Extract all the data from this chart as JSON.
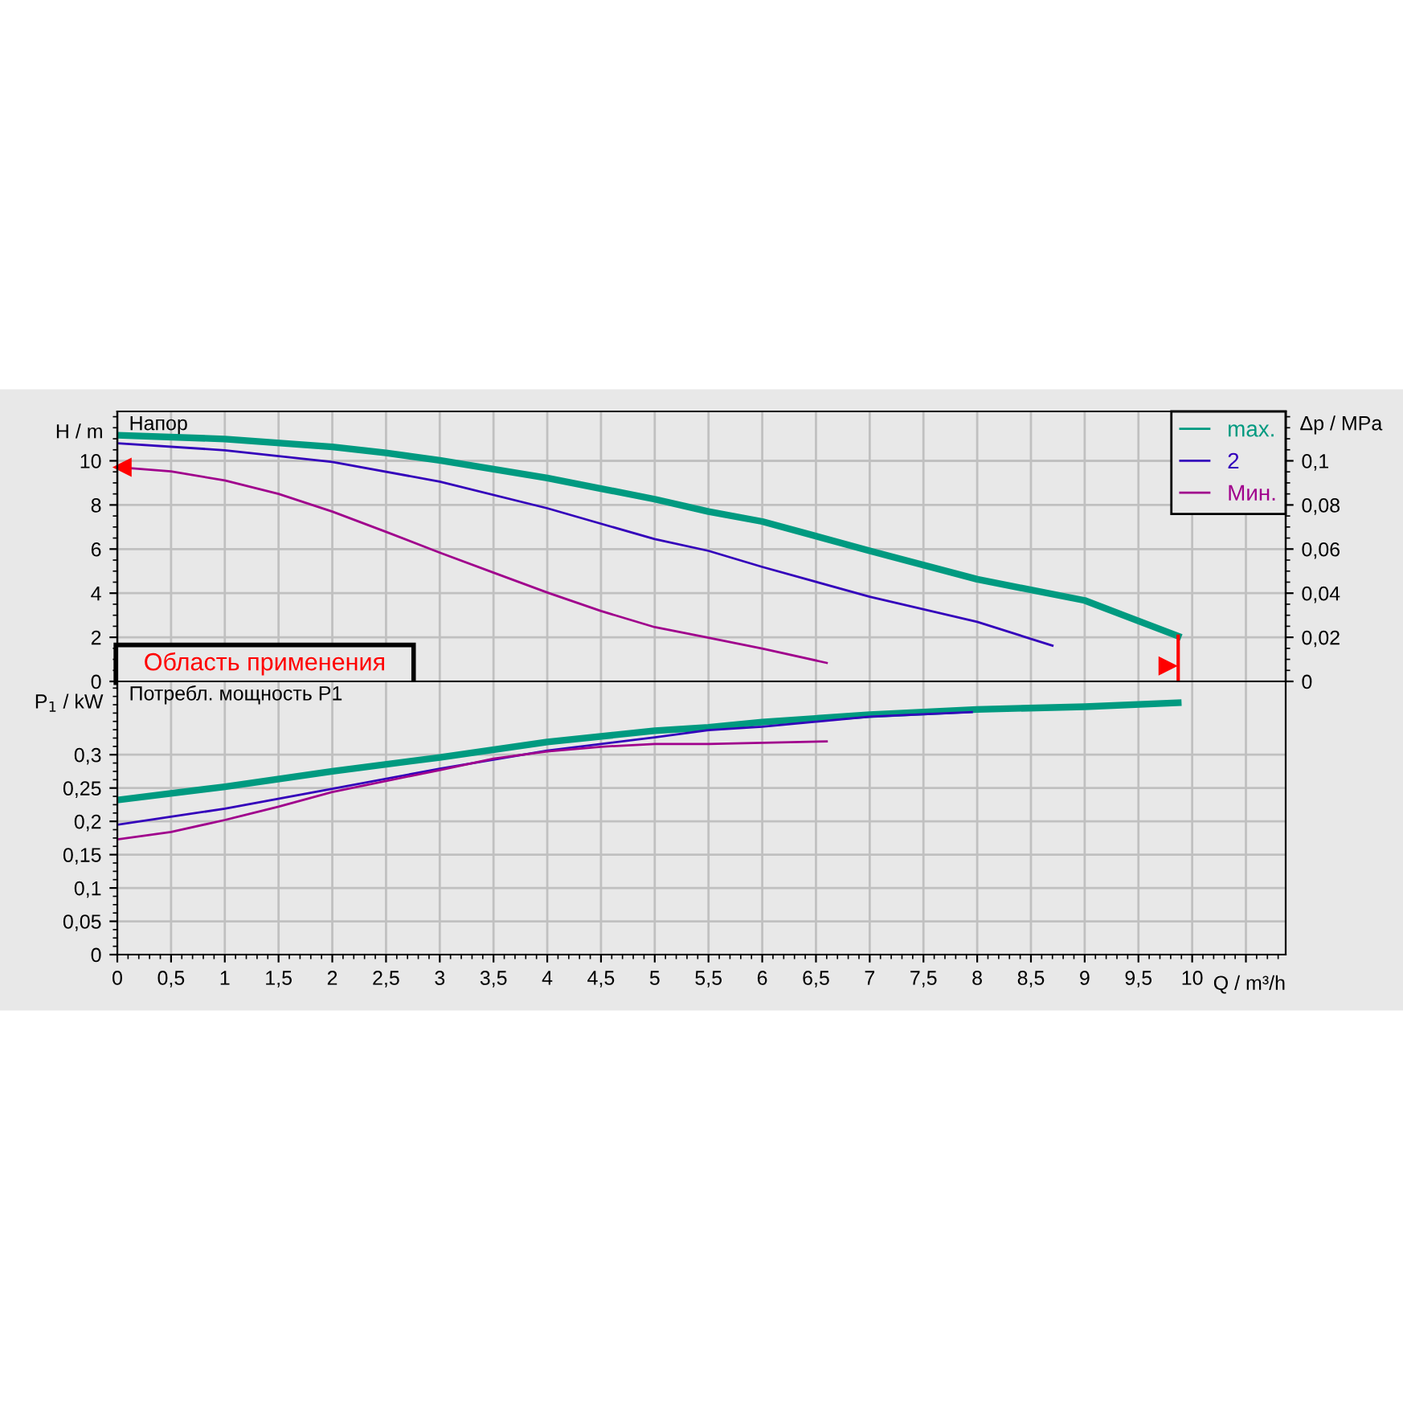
{
  "chart_data": [
    {
      "type": "line",
      "title": "Напор",
      "ylabel": "H / m",
      "y2label": "Δp / MPa",
      "legend": "top right",
      "grid": true,
      "tick_labels": "y",
      "xlim": [
        0,
        10.87
      ],
      "ylim": [
        0,
        12.24
      ],
      "y2lim": [
        0,
        0.1224
      ],
      "xticks": [
        0,
        0.5,
        1,
        1.5,
        2,
        2.5,
        3,
        3.5,
        4,
        4.5,
        5,
        5.5,
        6,
        6.5,
        7,
        7.5,
        8,
        8.5,
        9,
        9.5,
        10,
        10.5
      ],
      "yticks": [
        0,
        2,
        4,
        6,
        8,
        10
      ],
      "y2ticks": [
        0,
        {
          "value": 0.02,
          "label": "0,02"
        },
        {
          "value": 0.04,
          "label": "0,04"
        },
        {
          "value": 0.06,
          "label": "0,06"
        },
        {
          "value": 0.08,
          "label": "0,08"
        },
        {
          "value": 0.1,
          "label": "0,1"
        }
      ],
      "annotations": [
        "Область применения"
      ],
      "series": [
        {
          "name": "max.",
          "color": "#009a80",
          "x": [
            0,
            1,
            2,
            2.5,
            3,
            4,
            4.5,
            5,
            5.5,
            6,
            7,
            8,
            9,
            9.87
          ],
          "values": [
            11.16,
            10.99,
            10.63,
            10.36,
            10.02,
            9.22,
            8.74,
            8.26,
            7.7,
            7.25,
            5.92,
            4.63,
            3.67,
            2.05
          ]
        },
        {
          "name": "2",
          "color": "#3300bb",
          "x": [
            0,
            1,
            2,
            3,
            4,
            5,
            5.5,
            6,
            7,
            8,
            8.7
          ],
          "values": [
            10.8,
            10.48,
            9.95,
            9.06,
            7.85,
            6.45,
            5.92,
            5.19,
            3.84,
            2.7,
            1.62
          ]
        },
        {
          "name": "Мин.",
          "color": "#a0008c",
          "x": [
            0,
            0.5,
            1,
            1.5,
            2,
            2.5,
            3,
            3.5,
            4,
            4.5,
            5,
            5.5,
            6,
            6.6
          ],
          "values": [
            9.71,
            9.52,
            9.11,
            8.5,
            7.7,
            6.78,
            5.84,
            4.93,
            4.03,
            3.19,
            2.46,
            1.98,
            1.49,
            0.84
          ]
        }
      ]
    },
    {
      "type": "line",
      "title": "Потребл. мощность P1",
      "ylabel": "P$_{1}$ / kW",
      "xlabel": "Q / m³/h",
      "grid": true,
      "xlim": [
        0,
        10.87
      ],
      "ylim": [
        0,
        0.41
      ],
      "xticks": [
        0,
        {
          "value": 0.5,
          "label": "0,5"
        },
        1,
        {
          "value": 1.5,
          "label": "1,5"
        },
        2,
        {
          "value": 2.5,
          "label": "2,5"
        },
        3,
        {
          "value": 3.5,
          "label": "3,5"
        },
        4,
        {
          "value": 4.5,
          "label": "4,5"
        },
        5,
        {
          "value": 5.5,
          "label": "5,5"
        },
        6,
        {
          "value": 6.5,
          "label": "6,5"
        },
        7,
        {
          "value": 7.5,
          "label": "7,5"
        },
        8,
        {
          "value": 8.5,
          "label": "8,5"
        },
        9,
        {
          "value": 9.5,
          "label": "9,5"
        },
        10,
        {
          "value": 10.5,
          "label": null
        }
      ],
      "yticks": [
        0,
        {
          "value": 0.05,
          "label": "0,05"
        },
        {
          "value": 0.1,
          "label": "0,1"
        },
        {
          "value": 0.15,
          "label": "0,15"
        },
        {
          "value": 0.2,
          "label": "0,2"
        },
        {
          "value": 0.25,
          "label": "0,25"
        },
        {
          "value": 0.3,
          "label": "0,3"
        }
      ],
      "series": [
        {
          "color": "#009a80",
          "x": [
            0,
            1,
            2,
            3,
            4,
            5,
            5.5,
            6,
            7,
            8,
            9,
            9.87
          ],
          "values": [
            0.232,
            0.252,
            0.275,
            0.296,
            0.319,
            0.336,
            0.341,
            0.349,
            0.36,
            0.368,
            0.372,
            0.378
          ]
        },
        {
          "color": "#3300bb",
          "x": [
            0,
            1,
            2,
            3,
            4,
            5,
            5.5,
            6,
            7,
            7.95
          ],
          "values": [
            0.195,
            0.219,
            0.249,
            0.279,
            0.306,
            0.326,
            0.337,
            0.342,
            0.357,
            0.364
          ]
        },
        {
          "color": "#a0008c",
          "x": [
            0,
            0.5,
            1,
            1.5,
            2,
            3,
            3.5,
            4,
            4.5,
            5,
            5.5,
            6.6
          ],
          "values": [
            0.173,
            0.184,
            0.202,
            0.222,
            0.244,
            0.277,
            0.294,
            0.305,
            0.312,
            0.316,
            0.316,
            0.32
          ]
        }
      ]
    }
  ]
}
